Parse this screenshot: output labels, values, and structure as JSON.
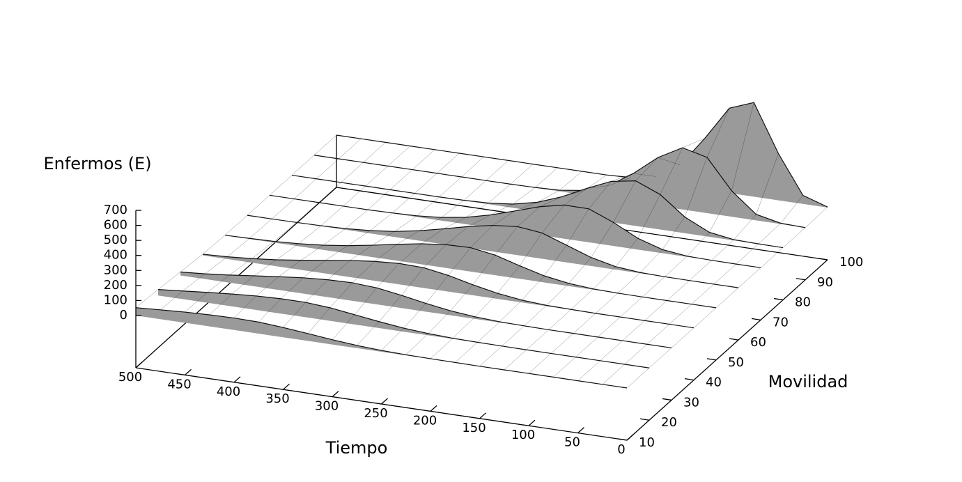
{
  "chart_data": {
    "type": "surface",
    "zlabel": "Enfermos (E)",
    "xlabel": "Tiempo",
    "ylabel": "Movilidad",
    "x": [
      0,
      25,
      50,
      75,
      100,
      125,
      150,
      175,
      200,
      225,
      250,
      275,
      300,
      325,
      350,
      375,
      400,
      425,
      450,
      475,
      500
    ],
    "y": [
      10,
      20,
      30,
      40,
      50,
      60,
      70,
      80,
      90,
      100
    ],
    "values": [
      [
        0,
        0,
        0,
        0,
        0,
        0,
        0,
        1,
        2,
        4,
        9,
        18,
        32,
        49,
        65,
        77,
        80,
        77,
        71,
        62,
        52
      ],
      [
        0,
        0,
        0,
        0,
        0,
        0,
        1,
        2,
        5,
        12,
        24,
        43,
        65,
        87,
        99,
        99,
        93,
        82,
        69,
        54,
        40
      ],
      [
        0,
        0,
        0,
        0,
        0,
        0,
        2,
        5,
        14,
        30,
        55,
        85,
        110,
        120,
        116,
        105,
        88,
        70,
        51,
        35,
        23
      ],
      [
        0,
        0,
        0,
        0,
        0,
        2,
        5,
        16,
        37,
        70,
        108,
        135,
        139,
        129,
        111,
        88,
        64,
        43,
        27,
        15,
        8
      ],
      [
        0,
        0,
        0,
        0,
        1,
        5,
        18,
        44,
        87,
        134,
        159,
        155,
        137,
        109,
        79,
        52,
        31,
        17,
        8,
        4,
        1
      ],
      [
        0,
        0,
        0,
        1,
        5,
        20,
        57,
        115,
        172,
        190,
        174,
        142,
        103,
        66,
        37,
        19,
        8,
        3,
        1,
        0,
        0
      ],
      [
        0,
        0,
        1,
        5,
        24,
        75,
        157,
        223,
        224,
        189,
        137,
        86,
        46,
        21,
        8,
        3,
        0,
        0,
        0,
        0,
        0
      ],
      [
        0,
        1,
        5,
        30,
        108,
        233,
        300,
        272,
        201,
        122,
        61,
        25,
        8,
        2,
        0,
        0,
        0,
        0,
        0,
        0,
        0
      ],
      [
        0,
        5,
        40,
        173,
        371,
        411,
        322,
        192,
        87,
        30,
        8,
        2,
        0,
        0,
        0,
        0,
        0,
        0,
        0,
        0,
        0
      ],
      [
        4,
        57,
        311,
        627,
        565,
        340,
        138,
        38,
        7,
        0,
        0,
        0,
        0,
        0,
        0,
        0,
        0,
        0,
        0,
        0,
        0
      ]
    ],
    "xlim": [
      0,
      500
    ],
    "ylim": [
      10,
      100
    ],
    "zlim": [
      0,
      700
    ],
    "xticks": [
      0,
      50,
      100,
      150,
      200,
      250,
      300,
      350,
      400,
      450,
      500
    ],
    "yticks": [
      10,
      20,
      30,
      40,
      50,
      60,
      70,
      80,
      90,
      100
    ],
    "zticks": [
      0,
      100,
      200,
      300,
      400,
      500,
      600,
      700
    ],
    "color": "#9a9a9a",
    "line_color": "#111111"
  }
}
